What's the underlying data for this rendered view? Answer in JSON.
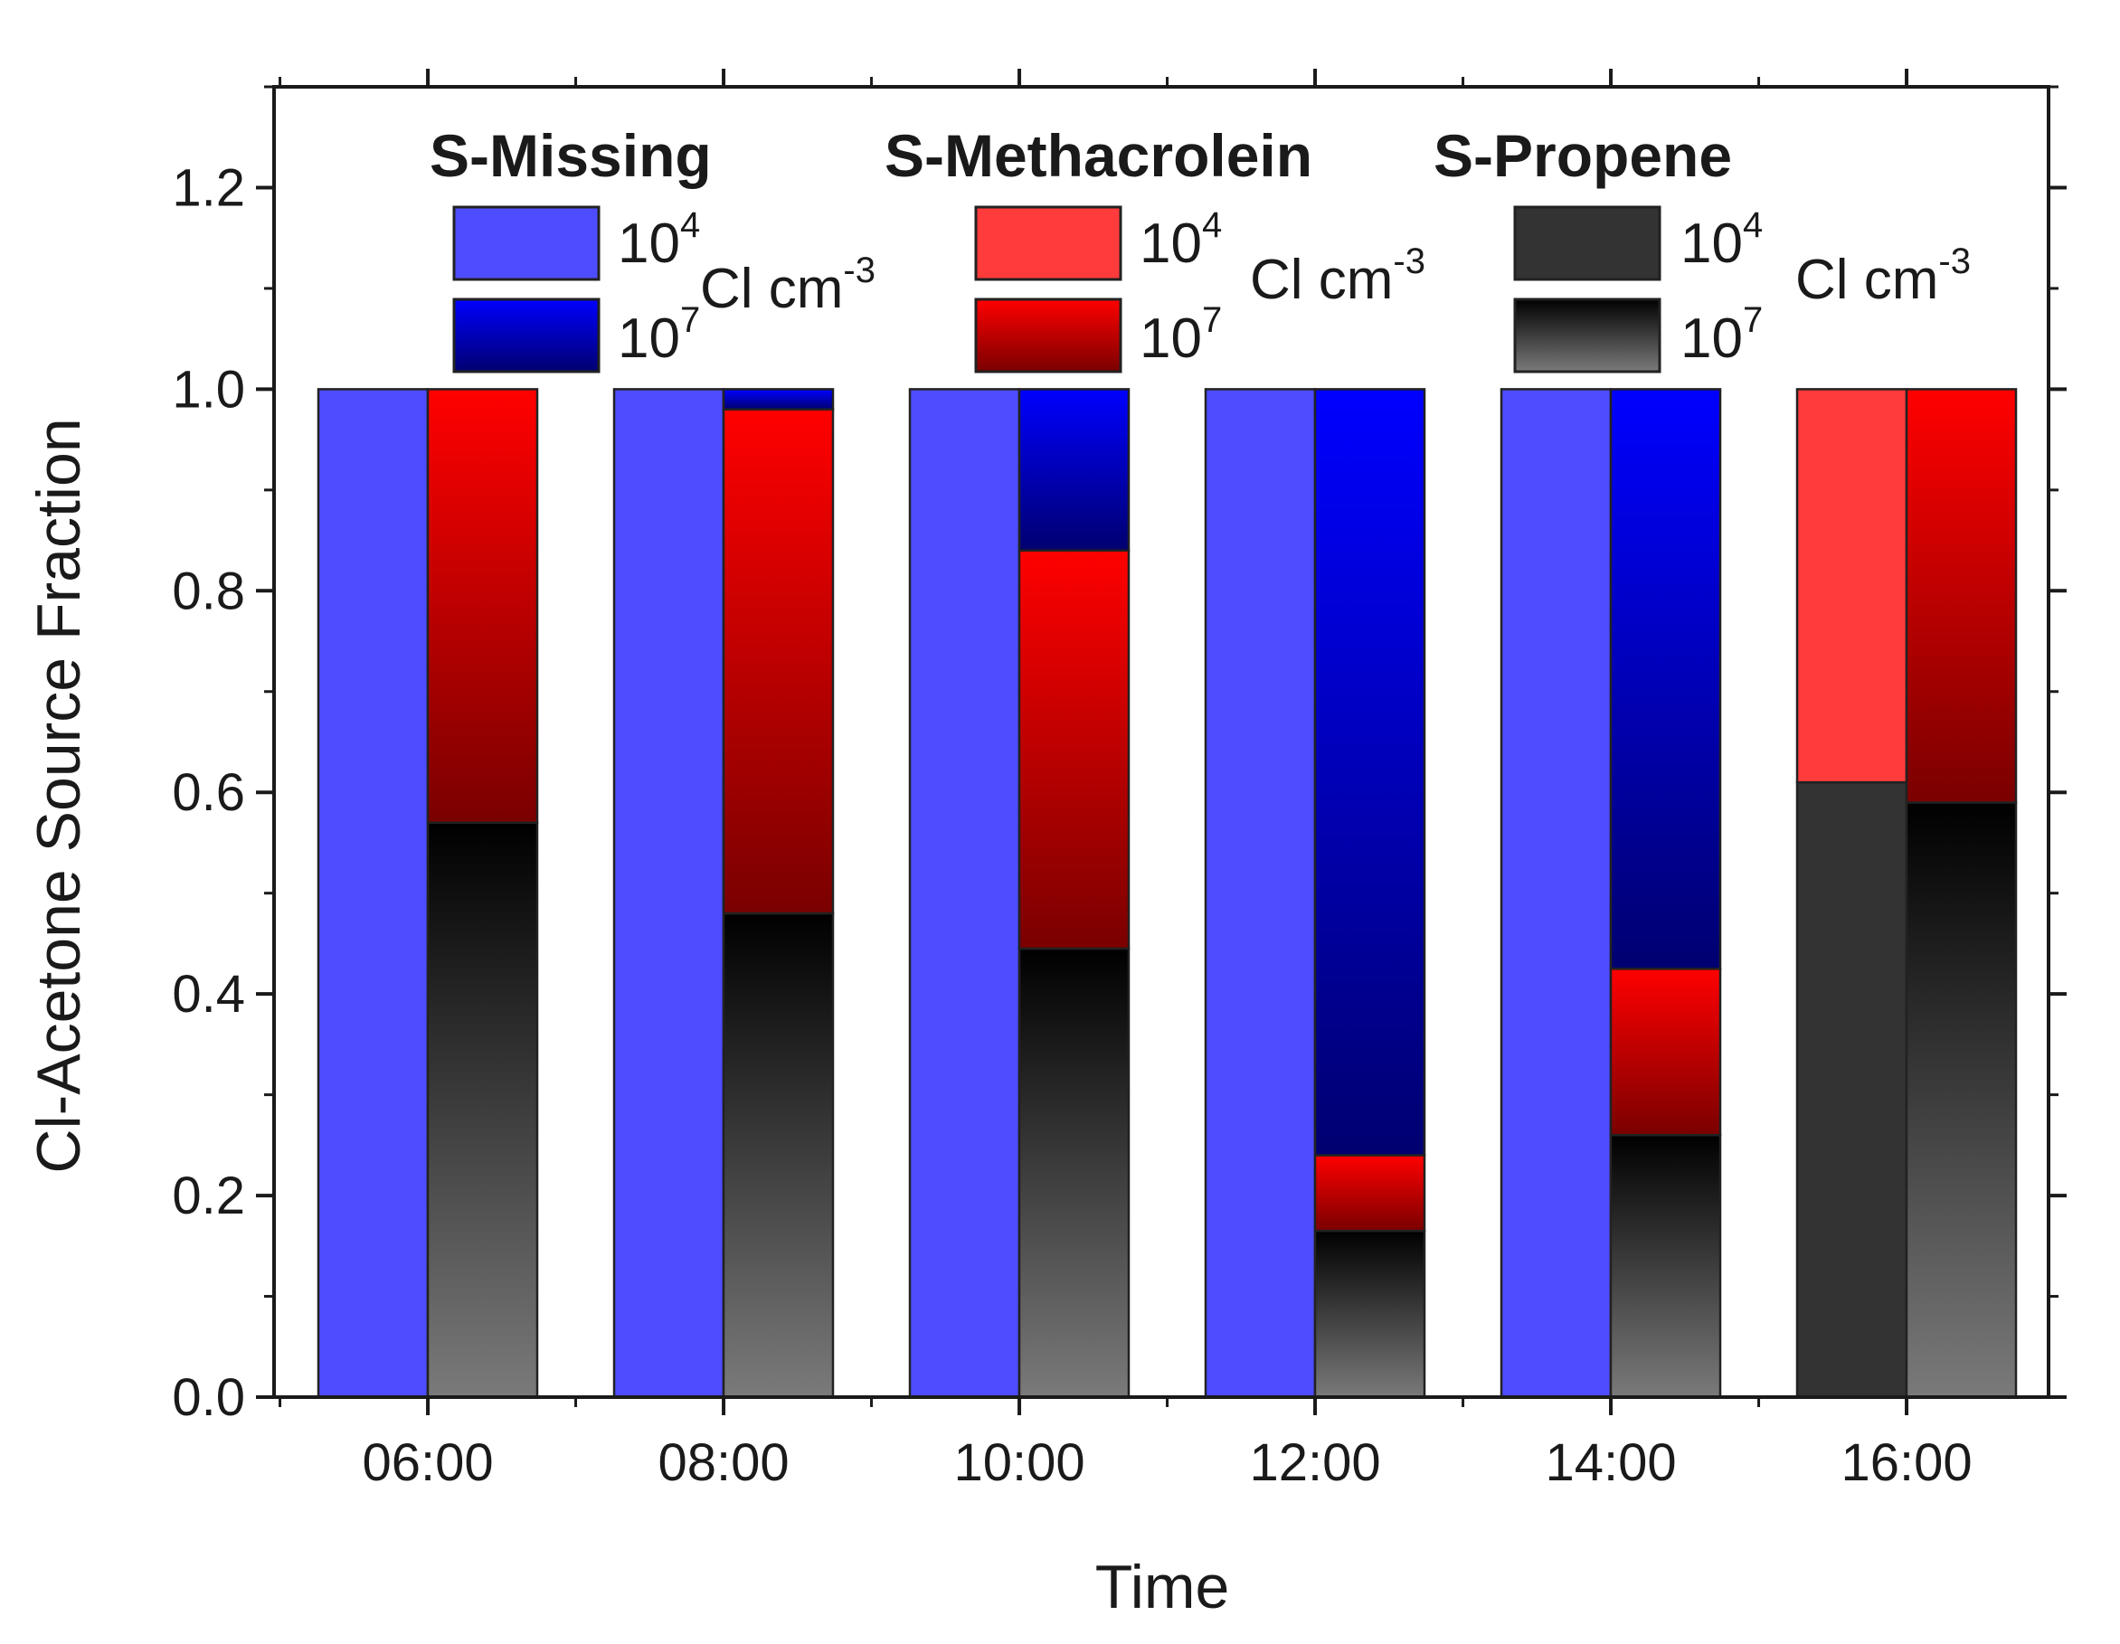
{
  "chart_data": {
    "type": "bar",
    "subtype": "grouped-stacked",
    "title": "",
    "xlabel": "Time",
    "ylabel": "Cl-Acetone Source Fraction",
    "ylim": [
      0.0,
      1.3
    ],
    "yticks": [
      "0.0",
      "0.2",
      "0.4",
      "0.6",
      "0.8",
      "1.0",
      "1.2"
    ],
    "categories": [
      "06:00",
      "08:00",
      "10:00",
      "12:00",
      "14:00",
      "16:00"
    ],
    "cl_levels": [
      {
        "base": "10",
        "exponent": "4"
      },
      {
        "base": "10",
        "exponent": "7"
      }
    ],
    "sources": [
      "S-Missing",
      "S-Methacrolein",
      "S-Propene"
    ],
    "stack_order_bottom_to_top": [
      "S-Propene",
      "S-Methacrolein",
      "S-Missing"
    ],
    "series": [
      {
        "name": "S-Missing 10^4 Cl cm-3",
        "source": "S-Missing",
        "level": "10^4",
        "color": "#4d4dff",
        "values": [
          1.0,
          1.0,
          1.0,
          1.0,
          1.0,
          0.0
        ]
      },
      {
        "name": "S-Methacrolein 10^4 Cl cm-3",
        "source": "S-Methacrolein",
        "level": "10^4",
        "color": "#ff3b3b",
        "values": [
          0.0,
          0.0,
          0.0,
          0.0,
          0.0,
          0.39
        ]
      },
      {
        "name": "S-Propene 10^4 Cl cm-3",
        "source": "S-Propene",
        "level": "10^4",
        "color": "#333333",
        "values": [
          0.0,
          0.0,
          0.0,
          0.0,
          0.0,
          0.61
        ]
      },
      {
        "name": "S-Missing 10^7 Cl cm-3",
        "source": "S-Missing",
        "level": "10^7",
        "color": "#0000ee",
        "values": [
          0.0,
          0.02,
          0.16,
          0.76,
          0.575,
          0.0
        ]
      },
      {
        "name": "S-Methacrolein 10^7 Cl cm-3",
        "source": "S-Methacrolein",
        "level": "10^7",
        "color": "#ff0000",
        "values": [
          0.43,
          0.5,
          0.395,
          0.075,
          0.165,
          0.41
        ]
      },
      {
        "name": "S-Propene 10^7 Cl cm-3",
        "source": "S-Propene",
        "level": "10^7",
        "color": "#000000",
        "values": [
          0.57,
          0.48,
          0.445,
          0.165,
          0.26,
          0.59
        ]
      }
    ],
    "legend": {
      "placement": "top",
      "unit_text": "Cl cm",
      "unit_exponent": "-3",
      "groups": [
        {
          "title": "S-Missing",
          "swatch_10_4": "#4d4dff",
          "swatch_10_7": "#0000ee"
        },
        {
          "title": "S-Methacrolein",
          "swatch_10_4": "#ff3b3b",
          "swatch_10_7": "#ff0000"
        },
        {
          "title": "S-Propene",
          "swatch_10_4": "#333333",
          "swatch_10_7": "#000000"
        }
      ]
    },
    "grid": false
  }
}
